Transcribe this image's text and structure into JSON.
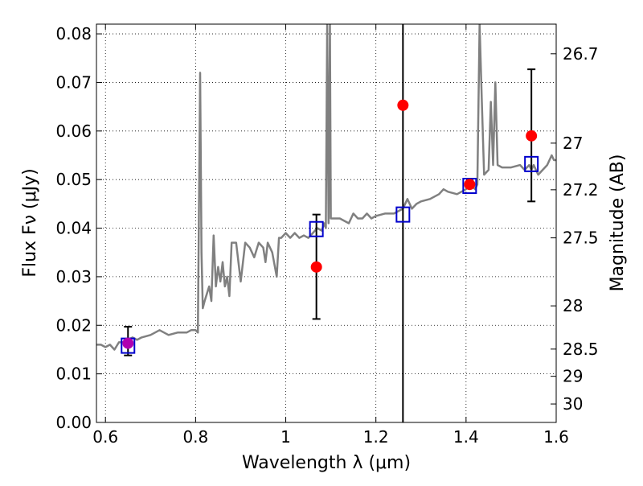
{
  "chart_data": {
    "type": "scatter",
    "xlabel": "Wavelength  λ (μm)",
    "ylabel": "Flux  Fν (μJy)",
    "y2label": "Magnitude (AB)",
    "xlim": [
      0.58,
      1.6
    ],
    "ylim": [
      0.0,
      0.082
    ],
    "grid": true,
    "x_ticks": [
      {
        "value": 0.6,
        "label": "0.6"
      },
      {
        "value": 0.8,
        "label": "0.8"
      },
      {
        "value": 1.0,
        "label": "1"
      },
      {
        "value": 1.2,
        "label": "1.2"
      },
      {
        "value": 1.4,
        "label": "1.4"
      },
      {
        "value": 1.6,
        "label": "1.6"
      }
    ],
    "y_ticks": [
      {
        "value": 0.0,
        "label": "0.00"
      },
      {
        "value": 0.01,
        "label": "0.01"
      },
      {
        "value": 0.02,
        "label": "0.02"
      },
      {
        "value": 0.03,
        "label": "0.03"
      },
      {
        "value": 0.04,
        "label": "0.04"
      },
      {
        "value": 0.05,
        "label": "0.05"
      },
      {
        "value": 0.06,
        "label": "0.06"
      },
      {
        "value": 0.07,
        "label": "0.07"
      },
      {
        "value": 0.08,
        "label": "0.08"
      }
    ],
    "y2_ticks": [
      {
        "flux": 0.0759,
        "label": "26.7"
      },
      {
        "flux": 0.0575,
        "label": "27"
      },
      {
        "flux": 0.0479,
        "label": "27.2"
      },
      {
        "flux": 0.038,
        "label": "27.5"
      },
      {
        "flux": 0.024,
        "label": "28"
      },
      {
        "flux": 0.0151,
        "label": "28.5"
      },
      {
        "flux": 0.0095,
        "label": "29"
      },
      {
        "flux": 0.0038,
        "label": "30"
      }
    ],
    "vertical_line_x": 1.26,
    "series": [
      {
        "kind": "spectrum",
        "color": "#808080",
        "x": [
          0.58,
          0.59,
          0.6,
          0.61,
          0.62,
          0.63,
          0.64,
          0.65,
          0.66,
          0.67,
          0.68,
          0.7,
          0.72,
          0.74,
          0.76,
          0.78,
          0.79,
          0.8,
          0.805,
          0.81,
          0.813,
          0.816,
          0.82,
          0.83,
          0.835,
          0.84,
          0.845,
          0.85,
          0.855,
          0.86,
          0.865,
          0.87,
          0.875,
          0.88,
          0.89,
          0.9,
          0.91,
          0.92,
          0.93,
          0.94,
          0.95,
          0.955,
          0.96,
          0.97,
          0.98,
          0.985,
          0.99,
          1.0,
          1.01,
          1.02,
          1.03,
          1.04,
          1.05,
          1.06,
          1.07,
          1.08,
          1.085,
          1.089,
          1.092,
          1.095,
          1.098,
          1.1,
          1.12,
          1.14,
          1.15,
          1.16,
          1.17,
          1.18,
          1.19,
          1.2,
          1.22,
          1.24,
          1.26,
          1.27,
          1.28,
          1.29,
          1.3,
          1.32,
          1.34,
          1.35,
          1.36,
          1.38,
          1.4,
          1.41,
          1.42,
          1.425,
          1.43,
          1.435,
          1.44,
          1.45,
          1.455,
          1.46,
          1.465,
          1.47,
          1.48,
          1.5,
          1.52,
          1.53,
          1.54,
          1.545,
          1.55,
          1.56,
          1.57,
          1.58,
          1.59,
          1.595,
          1.6
        ],
        "y": [
          0.016,
          0.016,
          0.0155,
          0.016,
          0.015,
          0.0165,
          0.0165,
          0.017,
          0.0175,
          0.017,
          0.0175,
          0.018,
          0.019,
          0.018,
          0.0185,
          0.0185,
          0.019,
          0.019,
          0.0185,
          0.072,
          0.035,
          0.0235,
          0.025,
          0.028,
          0.025,
          0.0385,
          0.028,
          0.032,
          0.029,
          0.033,
          0.028,
          0.03,
          0.026,
          0.037,
          0.037,
          0.029,
          0.037,
          0.036,
          0.034,
          0.037,
          0.036,
          0.033,
          0.037,
          0.035,
          0.03,
          0.038,
          0.038,
          0.039,
          0.038,
          0.039,
          0.038,
          0.0385,
          0.038,
          0.039,
          0.04,
          0.0395,
          0.041,
          0.04,
          0.082,
          0.041,
          0.082,
          0.042,
          0.042,
          0.041,
          0.043,
          0.042,
          0.042,
          0.043,
          0.042,
          0.0425,
          0.043,
          0.043,
          0.044,
          0.046,
          0.044,
          0.045,
          0.0455,
          0.046,
          0.047,
          0.048,
          0.0475,
          0.047,
          0.048,
          0.049,
          0.048,
          0.049,
          0.082,
          0.066,
          0.051,
          0.052,
          0.066,
          0.053,
          0.07,
          0.053,
          0.0525,
          0.0525,
          0.053,
          0.052,
          0.053,
          0.052,
          0.053,
          0.051,
          0.052,
          0.053,
          0.055,
          0.054,
          0.054
        ]
      },
      {
        "kind": "model-photometry",
        "color": "#0000cc",
        "x": [
          0.65,
          1.068,
          1.26,
          1.408,
          1.545
        ],
        "y": [
          0.0158,
          0.0398,
          0.0428,
          0.0487,
          0.0532
        ]
      },
      {
        "kind": "observed-photometry",
        "color": "#ff0000",
        "x": [
          0.65,
          1.068,
          1.26,
          1.408,
          1.545
        ],
        "y": [
          0.0163,
          0.032,
          0.0653,
          0.049,
          0.059
        ],
        "err_low": [
          0.0025,
          0.0107,
          0,
          0,
          0.0135
        ],
        "err_high": [
          0.0034,
          0.0108,
          0,
          0,
          0.0137
        ]
      }
    ]
  }
}
